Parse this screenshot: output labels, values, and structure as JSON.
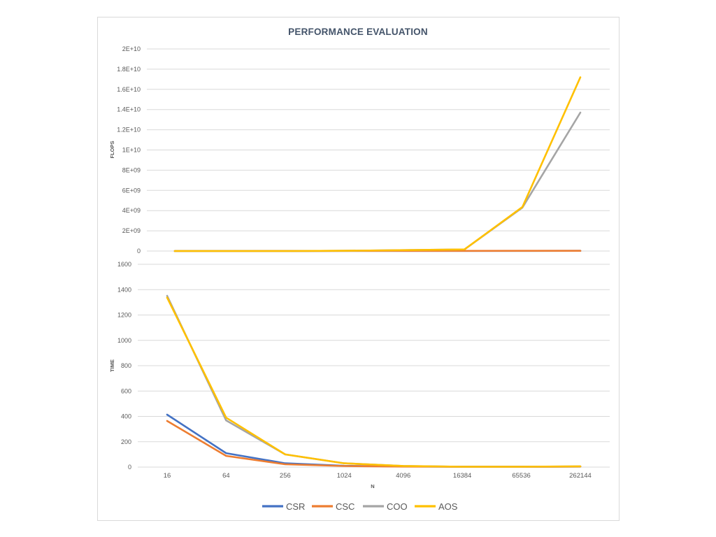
{
  "chart_data": {
    "type": "line",
    "title": "PERFORMANCE EVALUATION",
    "xlabel": "N",
    "categories": [
      "16",
      "64",
      "256",
      "1024",
      "4096",
      "16384",
      "65536",
      "262144"
    ],
    "grid": true,
    "legend_position": "bottom",
    "panels": [
      {
        "ylabel": "FLOPS",
        "ylim": [
          0,
          20000000000.0
        ],
        "yticks": [
          0,
          2000000000.0,
          4000000000.0,
          6000000000.0,
          8000000000.0,
          10000000000.0,
          12000000000.0,
          14000000000.0,
          16000000000.0,
          18000000000.0,
          20000000000.0
        ],
        "ytick_labels": [
          "0",
          "2E+09",
          "4E+09",
          "6E+09",
          "8E+09",
          "1E+10",
          "1.2E+10",
          "1.4E+10",
          "1.6E+10",
          "1.8E+10",
          "2E+10"
        ]
      },
      {
        "ylabel": "TIME",
        "ylim": [
          0,
          1600
        ],
        "yticks": [
          0,
          200,
          400,
          600,
          800,
          1000,
          1200,
          1400,
          1600
        ],
        "ytick_labels": [
          "0",
          "200",
          "400",
          "600",
          "800",
          "1000",
          "1200",
          "1400",
          "1600"
        ]
      }
    ],
    "series": [
      {
        "name": "CSR",
        "color": "#4472C4",
        "values": {
          "FLOPS": [
            500000.0,
            2000000.0,
            8000000.0,
            12000000.0,
            15000000.0,
            16000000.0,
            17000000.0,
            18000000.0
          ],
          "TIME": [
            414,
            110,
            30,
            10,
            5,
            2,
            2,
            4
          ]
        }
      },
      {
        "name": "CSC",
        "color": "#ED7D31",
        "values": {
          "FLOPS": [
            550000.0,
            2400000.0,
            9000000.0,
            13000000.0,
            16000000.0,
            17000000.0,
            18000000.0,
            19000000.0
          ],
          "TIME": [
            364,
            88,
            22,
            8,
            4,
            2,
            2,
            4
          ]
        }
      },
      {
        "name": "COO",
        "color": "#A5A5A5",
        "values": {
          "FLOPS": [
            150000.0,
            700000.0,
            2600000.0,
            30000000.0,
            90000000.0,
            160000000.0,
            4300000000.0,
            13700000000.0
          ],
          "TIME": [
            1352,
            368,
            100,
            30,
            9,
            3,
            3,
            5
          ]
        }
      },
      {
        "name": "AOS",
        "color": "#FFC000",
        "values": {
          "FLOPS": [
            150000.0,
            650000.0,
            2600000.0,
            30000000.0,
            90000000.0,
            160000000.0,
            4350000000.0,
            17200000000.0
          ],
          "TIME": [
            1338,
            390,
            100,
            30,
            9,
            3,
            3,
            6
          ]
        }
      }
    ]
  }
}
